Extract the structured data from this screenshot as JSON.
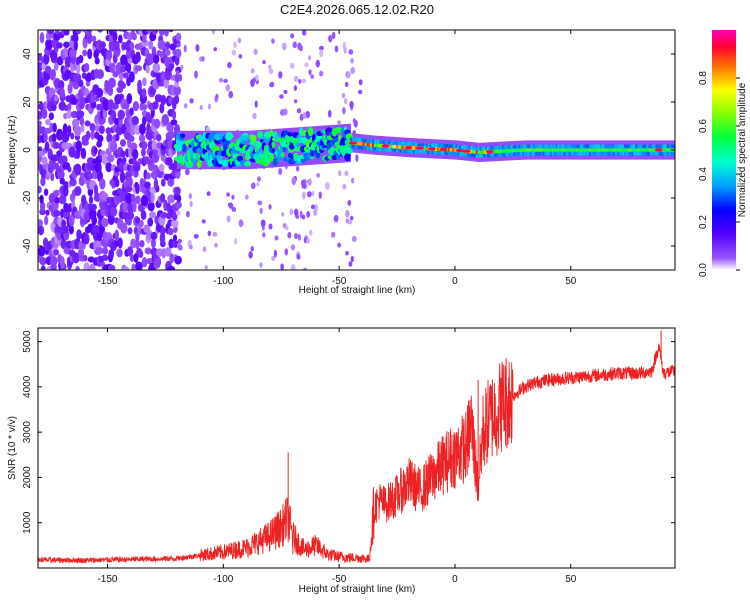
{
  "figure_title": "C2E4.2026.065.12.02.R20",
  "chart_data": [
    {
      "type": "heatmap",
      "title": "C2E4.2026.065.12.02.R20",
      "xlabel": "Height of straight line (km)",
      "ylabel": "Frequency (Hz)",
      "xlim": [
        -180,
        95
      ],
      "ylim": [
        -50,
        50
      ],
      "xticks": [
        -150,
        -100,
        -50,
        0,
        50
      ],
      "yticks": [
        -40,
        -20,
        0,
        20,
        40
      ],
      "xtick_labels": [
        "-150",
        "-100",
        "-50",
        "0",
        "50"
      ],
      "ytick_labels": [
        "-40",
        "-20",
        "0",
        "20",
        "40"
      ],
      "ridge_center_hz": [
        {
          "x": -120,
          "f": 0
        },
        {
          "x": -90,
          "f": 0
        },
        {
          "x": -60,
          "f": 2
        },
        {
          "x": -45,
          "f": 3
        },
        {
          "x": -35,
          "f": 2
        },
        {
          "x": -20,
          "f": 1
        },
        {
          "x": 0,
          "f": 0
        },
        {
          "x": 10,
          "f": -1
        },
        {
          "x": 30,
          "f": 0
        },
        {
          "x": 60,
          "f": 0
        },
        {
          "x": 95,
          "f": 0
        }
      ],
      "colorbar": {
        "label": "Normalized spectral amplitude",
        "ticks": [
          0.0,
          0.2,
          0.4,
          0.6,
          0.8
        ],
        "tick_labels": [
          "0.0",
          "0.2",
          "0.4",
          "0.6",
          "0.8"
        ],
        "range": [
          0,
          1
        ],
        "colors": [
          "#ffffff",
          "#7b00ff",
          "#0000ff",
          "#00c8ff",
          "#00ff80",
          "#80ff00",
          "#ffff00",
          "#ff8000",
          "#ff0000",
          "#ff00c0"
        ]
      }
    },
    {
      "type": "line",
      "title": "",
      "xlabel": "Height of straight line (km)",
      "ylabel": "SNR (10 * v/v)",
      "xlim": [
        -180,
        95
      ],
      "ylim": [
        0,
        5300
      ],
      "xticks": [
        -150,
        -100,
        -50,
        0,
        50
      ],
      "yticks": [
        1000,
        2000,
        3000,
        4000,
        5000
      ],
      "xtick_labels": [
        "-150",
        "-100",
        "-50",
        "0",
        "50"
      ],
      "ytick_labels": [
        "1000",
        "2000",
        "3000",
        "4000",
        "5000"
      ],
      "series": [
        {
          "name": "SNR",
          "color": "#ee2222",
          "x": [
            -180,
            -160,
            -140,
            -120,
            -110,
            -100,
            -90,
            -80,
            -75,
            -72,
            -70,
            -65,
            -60,
            -55,
            -50,
            -45,
            -40,
            -37,
            -35,
            -33,
            -30,
            -25,
            -20,
            -15,
            -10,
            -5,
            0,
            5,
            7,
            10,
            12,
            15,
            20,
            25,
            30,
            35,
            40,
            50,
            60,
            70,
            80,
            85,
            88,
            90,
            95
          ],
          "values": [
            180,
            170,
            190,
            210,
            280,
            350,
            450,
            700,
            900,
            1100,
            700,
            400,
            500,
            300,
            250,
            230,
            220,
            200,
            1300,
            1500,
            1400,
            1600,
            1900,
            1700,
            2000,
            2300,
            2500,
            2700,
            3200,
            1800,
            3000,
            3300,
            3600,
            3800,
            4000,
            4100,
            4150,
            4200,
            4250,
            4300,
            4300,
            4350,
            4900,
            4300,
            4350
          ],
          "spike_x": [
            -72,
            -70,
            10,
            89
          ],
          "spike_values": [
            2550,
            300,
            4150,
            5250
          ]
        }
      ]
    }
  ]
}
